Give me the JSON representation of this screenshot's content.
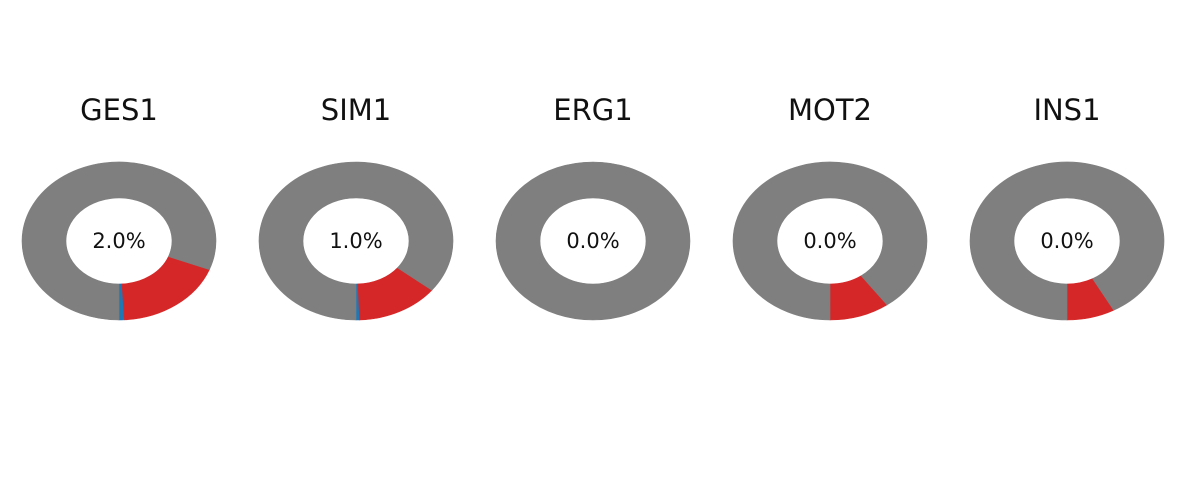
{
  "chart_data": [
    {
      "type": "pie",
      "variant": "donut",
      "title": "GES1",
      "center_label": "2.0%",
      "slices": [
        {
          "color": "#1f77b4",
          "fraction": 0.009
        },
        {
          "color": "#d62728",
          "fraction": 0.182
        },
        {
          "color": "#7f7f7f",
          "fraction": 0.809
        }
      ]
    },
    {
      "type": "pie",
      "variant": "donut",
      "title": "SIM1",
      "center_label": "1.0%",
      "slices": [
        {
          "color": "#1f77b4",
          "fraction": 0.006
        },
        {
          "color": "#d62728",
          "fraction": 0.137
        },
        {
          "color": "#7f7f7f",
          "fraction": 0.857
        }
      ]
    },
    {
      "type": "pie",
      "variant": "donut",
      "title": "ERG1",
      "center_label": "0.0%",
      "slices": [
        {
          "color": "#1f77b4",
          "fraction": 0.0
        },
        {
          "color": "#d62728",
          "fraction": 0.0
        },
        {
          "color": "#7f7f7f",
          "fraction": 1.0
        }
      ]
    },
    {
      "type": "pie",
      "variant": "donut",
      "title": "MOT2",
      "center_label": "0.0%",
      "slices": [
        {
          "color": "#1f77b4",
          "fraction": 0.0
        },
        {
          "color": "#d62728",
          "fraction": 0.1
        },
        {
          "color": "#7f7f7f",
          "fraction": 0.9
        }
      ]
    },
    {
      "type": "pie",
      "variant": "donut",
      "title": "INS1",
      "center_label": "0.0%",
      "slices": [
        {
          "color": "#1f77b4",
          "fraction": 0.0
        },
        {
          "color": "#d62728",
          "fraction": 0.08
        },
        {
          "color": "#7f7f7f",
          "fraction": 0.92
        }
      ]
    }
  ]
}
